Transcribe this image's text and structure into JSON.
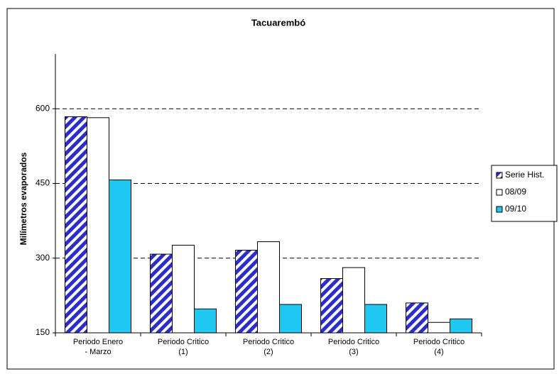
{
  "chart_data": {
    "type": "bar",
    "title": "Tacuarembó",
    "y_label": "Milímetros evaporados",
    "categories": [
      "Periodo  Enero - Marzo",
      "Periodo Critico (1)",
      "Periodo Critico (2)",
      "Periodo Critico (3)",
      "Periodo Critico (4)"
    ],
    "series": [
      {
        "name": "Serie Hist.",
        "color": "#2b2bd6",
        "pattern": "diagonal-stripes",
        "values": [
          584,
          308,
          316,
          259,
          210
        ]
      },
      {
        "name": "08/09",
        "color": "#ffffff",
        "values": [
          582,
          326,
          333,
          281,
          171
        ]
      },
      {
        "name": "09/10",
        "color": "#1ec8f0",
        "values": [
          457,
          198,
          207,
          207,
          178
        ]
      }
    ],
    "ylim": [
      150,
      710
    ],
    "yticks": [
      150,
      300,
      450,
      600
    ],
    "grid": true,
    "legend": "right"
  }
}
